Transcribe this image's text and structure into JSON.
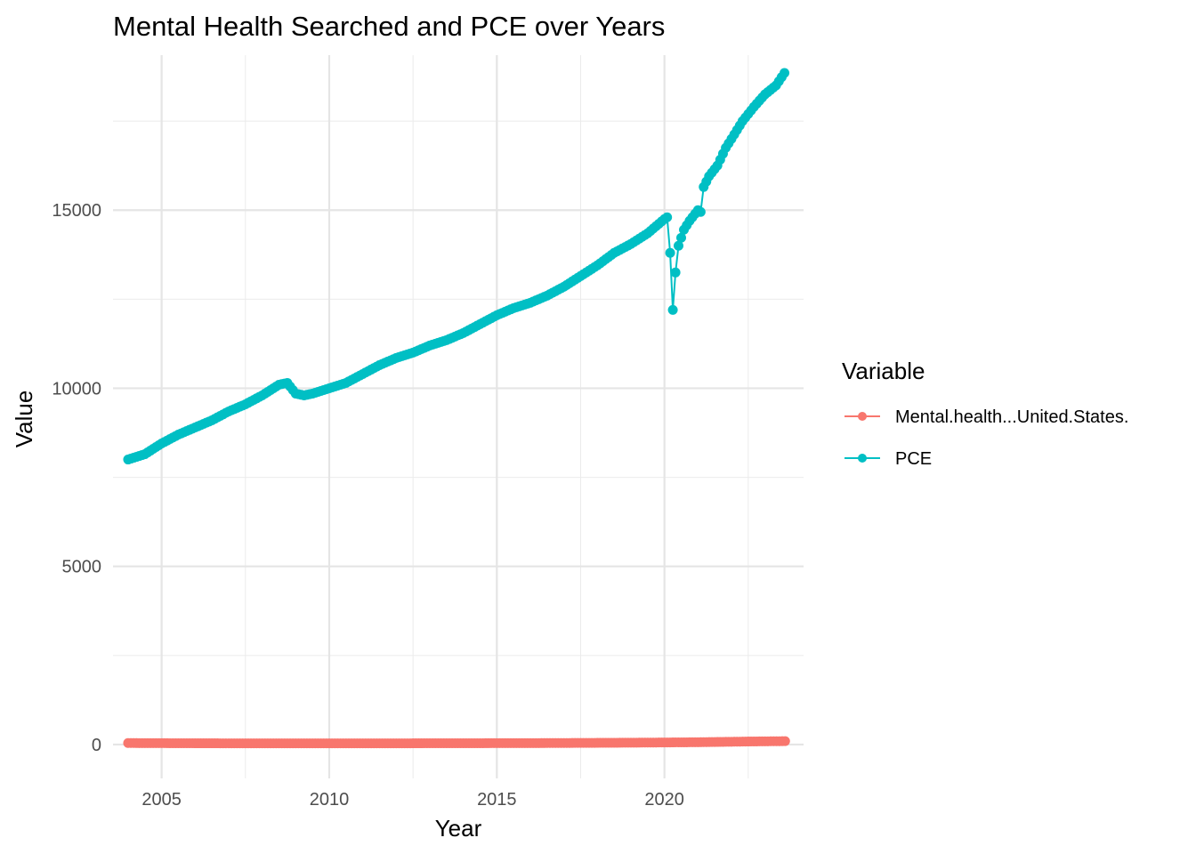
{
  "chart_data": {
    "type": "line",
    "title": "Mental Health Searched and PCE over Years",
    "xlabel": "Year",
    "ylabel": "Value",
    "xlim": [
      2003.55,
      2024.15
    ],
    "ylim": [
      -950,
      19350
    ],
    "x_ticks": [
      2005,
      2010,
      2015,
      2020
    ],
    "y_ticks": [
      0,
      5000,
      10000,
      15000
    ],
    "x_tick_labels": [
      "2005",
      "2010",
      "2015",
      "2020"
    ],
    "y_tick_labels": [
      "0",
      "5000",
      "10000",
      "15000"
    ],
    "grid": true,
    "legend": {
      "title": "Variable",
      "position": "right"
    },
    "marker": "circle",
    "series": [
      {
        "name": "Mental.health...United.States.",
        "color": "#F8766D",
        "points": [
          [
            2004.0,
            42
          ],
          [
            2006.0,
            35
          ],
          [
            2008.0,
            34
          ],
          [
            2010.0,
            33
          ],
          [
            2012.0,
            34
          ],
          [
            2014.0,
            37
          ],
          [
            2016.0,
            40
          ],
          [
            2017.5,
            45
          ],
          [
            2019.0,
            52
          ],
          [
            2020.0,
            58
          ],
          [
            2021.0,
            65
          ],
          [
            2022.0,
            78
          ],
          [
            2022.5,
            85
          ],
          [
            2023.0,
            90
          ],
          [
            2023.6,
            95
          ]
        ]
      },
      {
        "name": "PCE",
        "color": "#00BFC4",
        "points": [
          [
            2004.0,
            8000
          ],
          [
            2004.5,
            8150
          ],
          [
            2005.0,
            8450
          ],
          [
            2005.5,
            8700
          ],
          [
            2006.0,
            8900
          ],
          [
            2006.5,
            9100
          ],
          [
            2007.0,
            9350
          ],
          [
            2007.5,
            9550
          ],
          [
            2008.0,
            9800
          ],
          [
            2008.5,
            10100
          ],
          [
            2008.75,
            10150
          ],
          [
            2009.0,
            9850
          ],
          [
            2009.25,
            9800
          ],
          [
            2009.5,
            9850
          ],
          [
            2010.0,
            10000
          ],
          [
            2010.5,
            10150
          ],
          [
            2011.0,
            10400
          ],
          [
            2011.5,
            10650
          ],
          [
            2012.0,
            10850
          ],
          [
            2012.5,
            11000
          ],
          [
            2013.0,
            11200
          ],
          [
            2013.5,
            11350
          ],
          [
            2014.0,
            11550
          ],
          [
            2014.5,
            11800
          ],
          [
            2015.0,
            12050
          ],
          [
            2015.5,
            12250
          ],
          [
            2016.0,
            12400
          ],
          [
            2016.5,
            12600
          ],
          [
            2017.0,
            12850
          ],
          [
            2017.5,
            13150
          ],
          [
            2018.0,
            13450
          ],
          [
            2018.5,
            13800
          ],
          [
            2019.0,
            14050
          ],
          [
            2019.5,
            14350
          ],
          [
            2020.0,
            14750
          ],
          [
            2020.08,
            14800
          ],
          [
            2020.17,
            13800
          ],
          [
            2020.25,
            12200
          ],
          [
            2020.33,
            13250
          ],
          [
            2020.42,
            14000
          ],
          [
            2020.58,
            14450
          ],
          [
            2020.75,
            14700
          ],
          [
            2021.0,
            15000
          ],
          [
            2021.08,
            14950
          ],
          [
            2021.17,
            15650
          ],
          [
            2021.33,
            15950
          ],
          [
            2021.58,
            16250
          ],
          [
            2021.83,
            16750
          ],
          [
            2022.0,
            17000
          ],
          [
            2022.33,
            17500
          ],
          [
            2022.67,
            17900
          ],
          [
            2023.0,
            18250
          ],
          [
            2023.33,
            18500
          ],
          [
            2023.58,
            18850
          ]
        ]
      }
    ]
  }
}
